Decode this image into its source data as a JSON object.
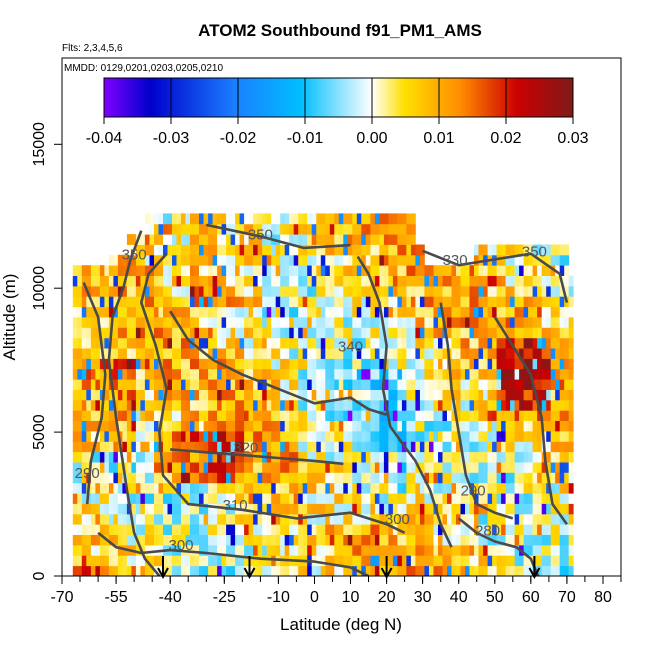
{
  "chart_data": {
    "type": "heatmap",
    "title": "ATOM2 Southbound f91_PM1_AMS",
    "subtitle_flights": "Flts: 2,3,4,5,6",
    "subtitle_dates": "MMDD: 0129,0201,0203,0205,0210",
    "xlabel": "Latitude (deg N)",
    "ylabel": "Altitude (m)",
    "xlim": [
      -70,
      85
    ],
    "ylim": [
      0,
      18000
    ],
    "x_ticks": [
      -70,
      -55,
      -40,
      -25,
      -10,
      0,
      10,
      20,
      30,
      40,
      50,
      60,
      70,
      80
    ],
    "x_tick_labels": [
      "-70",
      "-55",
      "-40",
      "-25",
      "-10",
      "0",
      "10",
      "20",
      "30",
      "40",
      "50",
      "60",
      "70",
      "80"
    ],
    "y_ticks": [
      0,
      5000,
      10000,
      15000
    ],
    "y_tick_labels": [
      "0",
      "5000",
      "10000",
      "15000"
    ],
    "colorbar": {
      "min": -0.04,
      "max": 0.03,
      "ticks": [
        -0.04,
        -0.03,
        -0.02,
        -0.01,
        0.0,
        0.01,
        0.02,
        0.03
      ],
      "tick_labels": [
        "-0.04",
        "-0.03",
        "-0.02",
        "-0.01",
        "0.00",
        "0.01",
        "0.02",
        "0.03"
      ],
      "stops": [
        "#7f00ff",
        "#0000cc",
        "#1a7fff",
        "#00bfff",
        "#ffffff",
        "#ffe000",
        "#ff8c00",
        "#cc0000",
        "#7f1a1a"
      ]
    },
    "contour_labels": [
      {
        "text": "350",
        "x": -50,
        "y": 11000
      },
      {
        "text": "350",
        "x": -15,
        "y": 11700
      },
      {
        "text": "330",
        "x": 39,
        "y": 10800
      },
      {
        "text": "350",
        "x": 61,
        "y": 11100
      },
      {
        "text": "340",
        "x": 10,
        "y": 7800
      },
      {
        "text": "320",
        "x": -19,
        "y": 4300
      },
      {
        "text": "310",
        "x": -22,
        "y": 2300
      },
      {
        "text": "300",
        "x": -37,
        "y": 900
      },
      {
        "text": "300",
        "x": 23,
        "y": 1800
      },
      {
        "text": "290",
        "x": -63,
        "y": 3400
      },
      {
        "text": "290",
        "x": 44,
        "y": 2800
      },
      {
        "text": "280",
        "x": 48,
        "y": 1400
      }
    ],
    "arrows_latitude": [
      -42,
      -18,
      20,
      61
    ],
    "grid": false
  }
}
